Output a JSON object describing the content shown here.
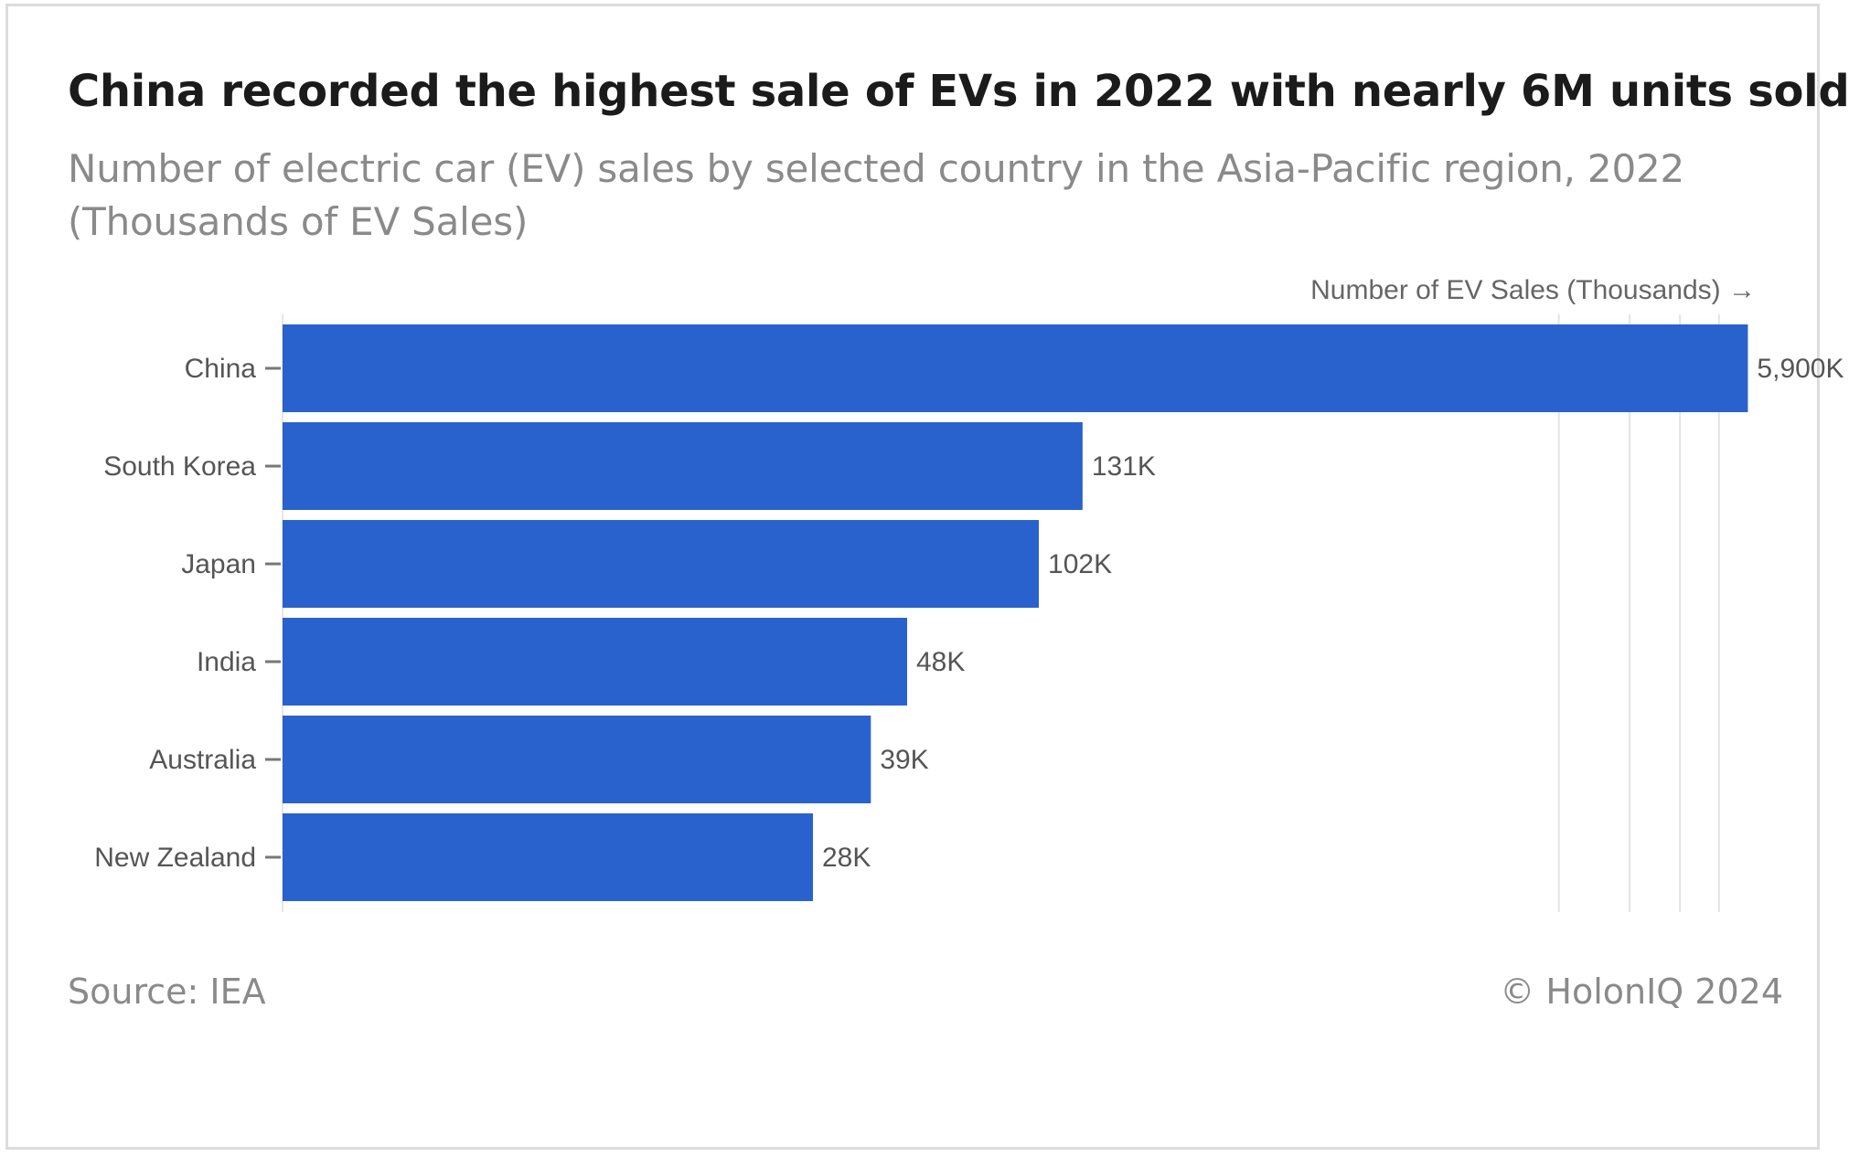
{
  "title": "China recorded the highest sale of EVs in 2022 with nearly 6M units sold",
  "subtitle": "Number of electric car (EV) sales by selected country in the Asia-Pacific region, 2022 (Thousands of EV Sales)",
  "source": "Source: IEA",
  "credit": "© HolonIQ 2024",
  "colors": {
    "bar": "#2962cc",
    "grid": "#e3e3e3",
    "tick": "#777777"
  },
  "chart_data": {
    "type": "bar",
    "orientation": "horizontal",
    "x_scale": "log",
    "categories": [
      "China",
      "South Korea",
      "Japan",
      "India",
      "Australia",
      "New Zealand"
    ],
    "values": [
      5900,
      131,
      102,
      48,
      39,
      28
    ],
    "value_labels": [
      "5,900K",
      "131K",
      "102K",
      "48K",
      "39K",
      "28K"
    ],
    "xlabel": "Number of EV Sales (Thousands) →",
    "ylabel": "",
    "grid": "vertical",
    "legend": "none"
  }
}
